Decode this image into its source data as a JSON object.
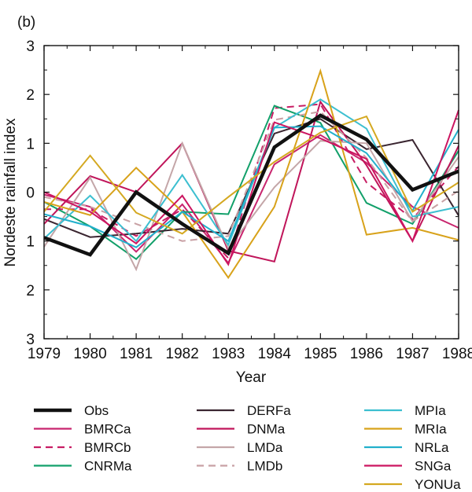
{
  "chart_data": {
    "type": "line",
    "panel_label": "(b)",
    "title": "",
    "xlabel": "Year",
    "ylabel": "Nordeste rainfall index",
    "x": [
      1979,
      1980,
      1981,
      1982,
      1983,
      1984,
      1985,
      1986,
      1987,
      1988
    ],
    "x_tick_labels": [
      "1979",
      "1980",
      "1981",
      "1982",
      "1983",
      "1984",
      "1985",
      "1986",
      "1987",
      "1988"
    ],
    "ylim": [
      -3,
      3
    ],
    "y_ticks": [
      3,
      2,
      1,
      0,
      -1,
      -2,
      -3
    ],
    "y_tick_labels": [
      "3",
      "2",
      "1",
      "0",
      "1",
      "2",
      "3"
    ],
    "grid": false,
    "legend_position": "bottom",
    "series": [
      {
        "name": "Obs",
        "color": "#111111",
        "style": "solid",
        "weight": "bold",
        "values": [
          -0.93,
          -1.28,
          0.0,
          -0.65,
          -1.25,
          0.92,
          1.57,
          1.08,
          0.05,
          0.43
        ]
      },
      {
        "name": "BMRCa",
        "color": "#c8256e",
        "style": "solid",
        "weight": "normal",
        "values": [
          -0.05,
          -0.3,
          -1.22,
          -0.25,
          -1.45,
          0.57,
          1.17,
          0.6,
          -0.3,
          -0.73
        ]
      },
      {
        "name": "BMRCb",
        "color": "#c81d64",
        "style": "dashed",
        "weight": "normal",
        "values": [
          -0.35,
          -0.35,
          -0.9,
          -0.35,
          -1.35,
          1.72,
          1.8,
          0.2,
          -0.55,
          0.53
        ]
      },
      {
        "name": "CNRMa",
        "color": "#12a06a",
        "style": "solid",
        "weight": "normal",
        "values": [
          -0.2,
          -0.7,
          -1.37,
          -0.4,
          -0.45,
          1.77,
          1.42,
          -0.22,
          -0.65,
          0.85
        ]
      },
      {
        "name": "DERFa",
        "color": "#3a2530",
        "style": "solid",
        "weight": "normal",
        "values": [
          -0.55,
          -0.92,
          -0.85,
          -0.75,
          -0.85,
          1.2,
          1.5,
          0.88,
          1.07,
          -0.48
        ]
      },
      {
        "name": "DNMa",
        "color": "#c0155a",
        "style": "solid",
        "weight": "normal",
        "values": [
          -0.65,
          0.33,
          0.0,
          1.0,
          -1.2,
          -1.42,
          1.85,
          0.55,
          -1.0,
          0.95
        ]
      },
      {
        "name": "LMDa",
        "color": "#c4a6a8",
        "style": "solid",
        "weight": "normal",
        "values": [
          -1.12,
          0.3,
          -1.58,
          1.0,
          -1.15,
          0.1,
          1.05,
          1.0,
          -0.6,
          0.72
        ]
      },
      {
        "name": "LMDb",
        "color": "#c8a0a4",
        "style": "dashed",
        "weight": "normal",
        "values": [
          -0.1,
          -0.3,
          -0.65,
          -1.0,
          -0.9,
          1.48,
          1.65,
          0.7,
          -0.6,
          0.03
        ]
      },
      {
        "name": "MPIa",
        "color": "#3cbfd0",
        "style": "solid",
        "weight": "normal",
        "values": [
          -0.95,
          -0.07,
          -1.0,
          0.35,
          -1.08,
          1.32,
          1.9,
          1.3,
          -0.5,
          -0.3
        ]
      },
      {
        "name": "MRIa",
        "color": "#d8a21a",
        "style": "solid",
        "weight": "normal",
        "values": [
          -0.2,
          -0.47,
          0.5,
          -0.4,
          -1.75,
          -0.3,
          2.48,
          -0.87,
          -0.73,
          -0.98
        ]
      },
      {
        "name": "NRLa",
        "color": "#22b0cc",
        "style": "solid",
        "weight": "normal",
        "values": [
          -0.45,
          -0.7,
          -1.13,
          -0.4,
          -1.0,
          1.32,
          1.35,
          0.8,
          -0.38,
          1.28
        ]
      },
      {
        "name": "SNGa",
        "color": "#cc1560",
        "style": "solid",
        "weight": "normal",
        "values": [
          0.0,
          -0.4,
          -1.05,
          -0.07,
          -1.48,
          1.43,
          1.1,
          0.68,
          -1.0,
          1.68
        ]
      },
      {
        "name": "YONUa",
        "color": "#d4a820",
        "style": "solid",
        "weight": "normal",
        "values": [
          -0.4,
          0.75,
          -0.42,
          -0.85,
          -0.1,
          0.62,
          1.22,
          1.55,
          -0.4,
          0.2
        ]
      }
    ]
  }
}
